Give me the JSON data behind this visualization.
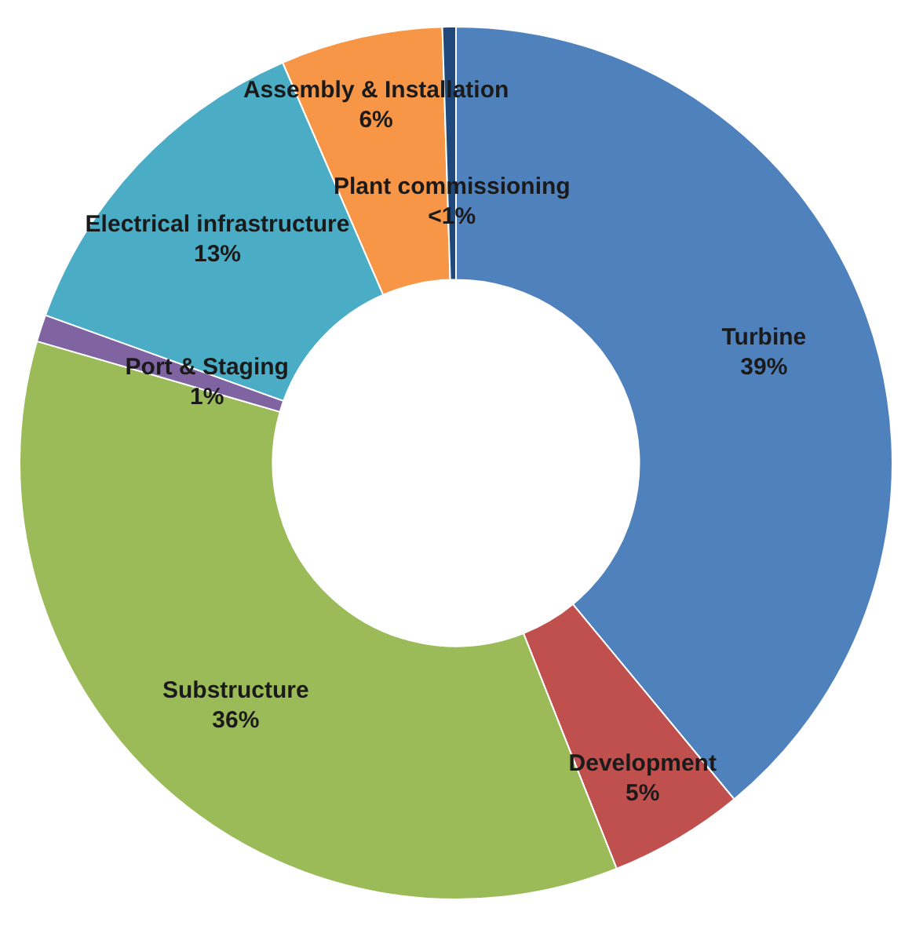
{
  "chart_data": {
    "type": "donut",
    "categories": [
      "Turbine",
      "Development",
      "Substructure",
      "Port & Staging",
      "Electrical infrastructure",
      "Assembly & Installation",
      "Plant commissioning"
    ],
    "values": [
      39,
      5,
      35.5,
      1,
      13,
      6,
      0.5
    ],
    "value_labels": [
      "39%",
      "5%",
      "36%",
      "1%",
      "13%",
      "6%",
      "<1%"
    ],
    "colors": [
      "#4f81bd",
      "#c0504d",
      "#9bbb59",
      "#8064a2",
      "#4bacc6",
      "#f79646",
      "#1f497d"
    ],
    "legend": false
  }
}
